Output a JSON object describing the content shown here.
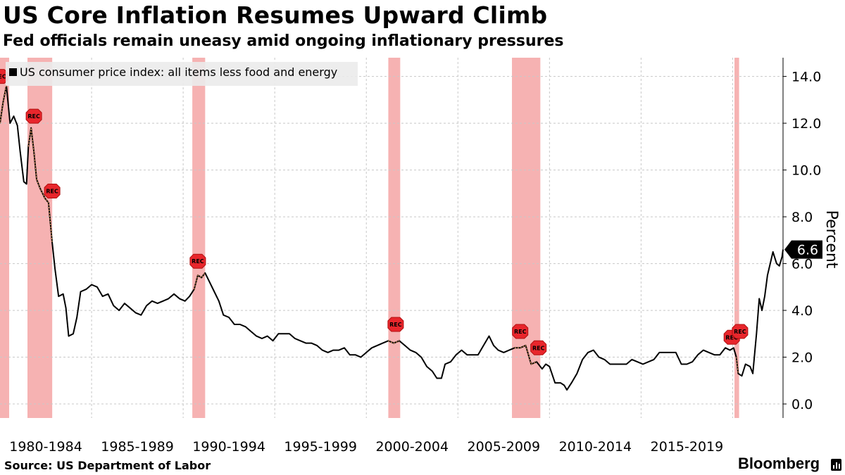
{
  "chart_data": {
    "type": "line",
    "title": "US Core Inflation Resumes Upward Climb",
    "subtitle": "Fed officials remain uneasy amid ongoing inflationary pressures",
    "ylabel": "Percent",
    "ylim": [
      -0.6,
      14.8
    ],
    "yticks": [
      0.0,
      2.0,
      4.0,
      6.0,
      8.0,
      10.0,
      12.0,
      14.0
    ],
    "ytick_labels": [
      "0.0",
      "2.0",
      "4.0",
      "6.0",
      "8.0",
      "10.0",
      "12.0",
      "14.0"
    ],
    "x_range": [
      1980.0,
      2022.75
    ],
    "xtick_labels": [
      "1980-1984",
      "1985-1989",
      "1990-1994",
      "1995-1999",
      "2000-2004",
      "2005-2009",
      "2010-2014",
      "2015-2019"
    ],
    "grid": true,
    "legend_position": "top-left",
    "series": [
      {
        "name": "US consumer price index: all items less food and energy",
        "color": "#000000",
        "points": [
          [
            1980.0,
            12.0
          ],
          [
            1980.17,
            12.9
          ],
          [
            1980.35,
            13.6
          ],
          [
            1980.55,
            12.0
          ],
          [
            1980.75,
            12.3
          ],
          [
            1980.95,
            11.9
          ],
          [
            1981.1,
            10.8
          ],
          [
            1981.3,
            9.5
          ],
          [
            1981.45,
            9.4
          ],
          [
            1981.55,
            11.0
          ],
          [
            1981.7,
            11.8
          ],
          [
            1981.85,
            10.8
          ],
          [
            1982.0,
            9.6
          ],
          [
            1982.2,
            9.2
          ],
          [
            1982.45,
            8.8
          ],
          [
            1982.65,
            8.6
          ],
          [
            1982.85,
            6.9
          ],
          [
            1983.0,
            5.8
          ],
          [
            1983.2,
            4.6
          ],
          [
            1983.45,
            4.7
          ],
          [
            1983.6,
            4.1
          ],
          [
            1983.75,
            2.9
          ],
          [
            1984.0,
            3.0
          ],
          [
            1984.2,
            3.7
          ],
          [
            1984.4,
            4.8
          ],
          [
            1984.7,
            4.9
          ],
          [
            1985.0,
            5.1
          ],
          [
            1985.3,
            5.0
          ],
          [
            1985.6,
            4.6
          ],
          [
            1985.9,
            4.7
          ],
          [
            1986.2,
            4.2
          ],
          [
            1986.5,
            4.0
          ],
          [
            1986.8,
            4.3
          ],
          [
            1987.1,
            4.1
          ],
          [
            1987.4,
            3.9
          ],
          [
            1987.7,
            3.8
          ],
          [
            1988.0,
            4.2
          ],
          [
            1988.3,
            4.4
          ],
          [
            1988.6,
            4.3
          ],
          [
            1988.9,
            4.4
          ],
          [
            1989.2,
            4.5
          ],
          [
            1989.5,
            4.7
          ],
          [
            1989.8,
            4.5
          ],
          [
            1990.1,
            4.4
          ],
          [
            1990.35,
            4.6
          ],
          [
            1990.6,
            4.9
          ],
          [
            1990.8,
            5.5
          ],
          [
            1991.0,
            5.4
          ],
          [
            1991.2,
            5.6
          ],
          [
            1991.45,
            5.2
          ],
          [
            1991.7,
            4.8
          ],
          [
            1991.95,
            4.4
          ],
          [
            1992.2,
            3.8
          ],
          [
            1992.5,
            3.7
          ],
          [
            1992.8,
            3.4
          ],
          [
            1993.1,
            3.4
          ],
          [
            1993.4,
            3.3
          ],
          [
            1993.7,
            3.1
          ],
          [
            1994.0,
            2.9
          ],
          [
            1994.3,
            2.8
          ],
          [
            1994.6,
            2.9
          ],
          [
            1994.9,
            2.7
          ],
          [
            1995.2,
            3.0
          ],
          [
            1995.5,
            3.0
          ],
          [
            1995.8,
            3.0
          ],
          [
            1996.1,
            2.8
          ],
          [
            1996.4,
            2.7
          ],
          [
            1996.7,
            2.6
          ],
          [
            1997.0,
            2.6
          ],
          [
            1997.3,
            2.5
          ],
          [
            1997.6,
            2.3
          ],
          [
            1997.9,
            2.2
          ],
          [
            1998.2,
            2.3
          ],
          [
            1998.5,
            2.3
          ],
          [
            1998.8,
            2.4
          ],
          [
            1999.1,
            2.1
          ],
          [
            1999.4,
            2.1
          ],
          [
            1999.7,
            2.0
          ],
          [
            2000.0,
            2.2
          ],
          [
            2000.3,
            2.4
          ],
          [
            2000.6,
            2.5
          ],
          [
            2000.9,
            2.6
          ],
          [
            2001.2,
            2.7
          ],
          [
            2001.5,
            2.6
          ],
          [
            2001.8,
            2.7
          ],
          [
            2002.1,
            2.5
          ],
          [
            2002.4,
            2.3
          ],
          [
            2002.7,
            2.2
          ],
          [
            2003.0,
            2.0
          ],
          [
            2003.3,
            1.6
          ],
          [
            2003.6,
            1.4
          ],
          [
            2003.85,
            1.1
          ],
          [
            2004.1,
            1.1
          ],
          [
            2004.3,
            1.7
          ],
          [
            2004.6,
            1.8
          ],
          [
            2004.9,
            2.1
          ],
          [
            2005.2,
            2.3
          ],
          [
            2005.5,
            2.1
          ],
          [
            2005.8,
            2.1
          ],
          [
            2006.1,
            2.1
          ],
          [
            2006.4,
            2.5
          ],
          [
            2006.7,
            2.9
          ],
          [
            2006.95,
            2.5
          ],
          [
            2007.2,
            2.3
          ],
          [
            2007.5,
            2.2
          ],
          [
            2007.8,
            2.3
          ],
          [
            2008.1,
            2.4
          ],
          [
            2008.4,
            2.4
          ],
          [
            2008.7,
            2.5
          ],
          [
            2009.0,
            1.7
          ],
          [
            2009.3,
            1.8
          ],
          [
            2009.6,
            1.5
          ],
          [
            2009.8,
            1.7
          ],
          [
            2010.0,
            1.6
          ],
          [
            2010.3,
            0.9
          ],
          [
            2010.6,
            0.9
          ],
          [
            2010.8,
            0.8
          ],
          [
            2010.95,
            0.6
          ],
          [
            2011.2,
            0.9
          ],
          [
            2011.5,
            1.3
          ],
          [
            2011.8,
            1.9
          ],
          [
            2012.1,
            2.2
          ],
          [
            2012.4,
            2.3
          ],
          [
            2012.7,
            2.0
          ],
          [
            2013.0,
            1.9
          ],
          [
            2013.3,
            1.7
          ],
          [
            2013.6,
            1.7
          ],
          [
            2013.9,
            1.7
          ],
          [
            2014.2,
            1.7
          ],
          [
            2014.5,
            1.9
          ],
          [
            2014.8,
            1.8
          ],
          [
            2015.1,
            1.7
          ],
          [
            2015.4,
            1.8
          ],
          [
            2015.7,
            1.9
          ],
          [
            2016.0,
            2.2
          ],
          [
            2016.3,
            2.2
          ],
          [
            2016.6,
            2.2
          ],
          [
            2016.9,
            2.2
          ],
          [
            2017.2,
            1.7
          ],
          [
            2017.5,
            1.7
          ],
          [
            2017.8,
            1.8
          ],
          [
            2018.1,
            2.1
          ],
          [
            2018.4,
            2.3
          ],
          [
            2018.7,
            2.2
          ],
          [
            2019.0,
            2.1
          ],
          [
            2019.3,
            2.1
          ],
          [
            2019.6,
            2.4
          ],
          [
            2019.85,
            2.3
          ],
          [
            2020.05,
            2.4
          ],
          [
            2020.2,
            2.0
          ],
          [
            2020.3,
            1.3
          ],
          [
            2020.5,
            1.2
          ],
          [
            2020.7,
            1.7
          ],
          [
            2020.95,
            1.6
          ],
          [
            2021.1,
            1.3
          ],
          [
            2021.3,
            3.0
          ],
          [
            2021.45,
            4.5
          ],
          [
            2021.6,
            4.0
          ],
          [
            2021.75,
            4.6
          ],
          [
            2021.9,
            5.5
          ],
          [
            2022.05,
            6.0
          ],
          [
            2022.2,
            6.5
          ],
          [
            2022.4,
            6.0
          ],
          [
            2022.55,
            5.9
          ],
          [
            2022.7,
            6.3
          ],
          [
            2022.75,
            6.6
          ]
        ]
      }
    ],
    "recessions": [
      [
        1980.0,
        1980.5
      ],
      [
        1981.5,
        1982.85
      ],
      [
        1990.5,
        1991.2
      ],
      [
        2001.2,
        2001.85
      ],
      [
        2007.95,
        2009.5
      ],
      [
        2020.1,
        2020.35
      ]
    ],
    "recession_marker_label": "REC",
    "recession_marker_positions": [
      [
        1980.0,
        14.0
      ],
      [
        1981.85,
        12.3
      ],
      [
        1982.85,
        9.1
      ],
      [
        1990.8,
        6.1
      ],
      [
        2001.6,
        3.4
      ],
      [
        2008.4,
        3.1
      ],
      [
        2009.4,
        2.4
      ],
      [
        2019.95,
        2.85
      ],
      [
        2020.4,
        3.1
      ]
    ],
    "last_value_label": "6.6",
    "colors": {
      "line": "#000000",
      "recession_band": "#f4a5a5",
      "recession_marker": "#e8262c",
      "recession_accent": "#f0a25a",
      "grid": "#c8c8c8",
      "last_value_bg": "#000000"
    }
  },
  "legend": {
    "label": "US consumer price index: all items less food and energy"
  },
  "source": "Source: US Department of Labor",
  "brand": "Bloomberg"
}
